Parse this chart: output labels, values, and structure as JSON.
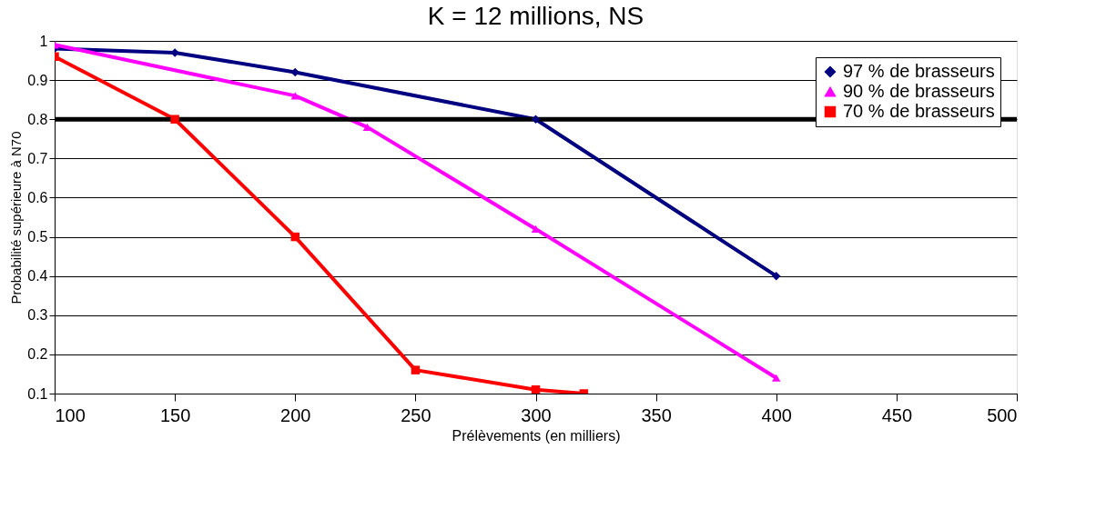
{
  "chart_data": {
    "type": "line",
    "title": "K = 12 millions, NS",
    "xlabel": "Prélèvements (en milliers)",
    "ylabel": "Probabilité supérieure à N70",
    "xlim": [
      100,
      500
    ],
    "xticks": [
      100,
      150,
      200,
      250,
      300,
      350,
      400,
      450,
      500
    ],
    "ylim": [
      0.1,
      1
    ],
    "yticks": [
      0.1,
      0.2,
      0.3,
      0.4,
      0.5,
      0.6,
      0.7,
      0.8,
      0.9,
      1
    ],
    "grid": "y",
    "legend": "top right",
    "line_style": "solid",
    "series": [
      {
        "name": "97 % de brasseurs",
        "color": "#000080",
        "marker": "diamond",
        "x": [
          100,
          150,
          200,
          300,
          400
        ],
        "values": [
          0.98,
          0.97,
          0.92,
          0.8,
          0.4
        ]
      },
      {
        "name": "90 % de brasseurs",
        "color": "#ff00ff",
        "marker": "triangle",
        "x": [
          100,
          200,
          230,
          300,
          400
        ],
        "values": [
          0.99,
          0.86,
          0.78,
          0.52,
          0.14
        ]
      },
      {
        "name": "70 % de brasseurs",
        "color": "#ff0000",
        "marker": "square",
        "x": [
          100,
          150,
          200,
          250,
          300,
          320
        ],
        "values": [
          0.96,
          0.8,
          0.5,
          0.16,
          0.11,
          0.1
        ]
      }
    ],
    "ref_lines": [
      {
        "axis": "y",
        "value": 0.8,
        "color": "#000000",
        "line_style": "solid"
      }
    ]
  }
}
